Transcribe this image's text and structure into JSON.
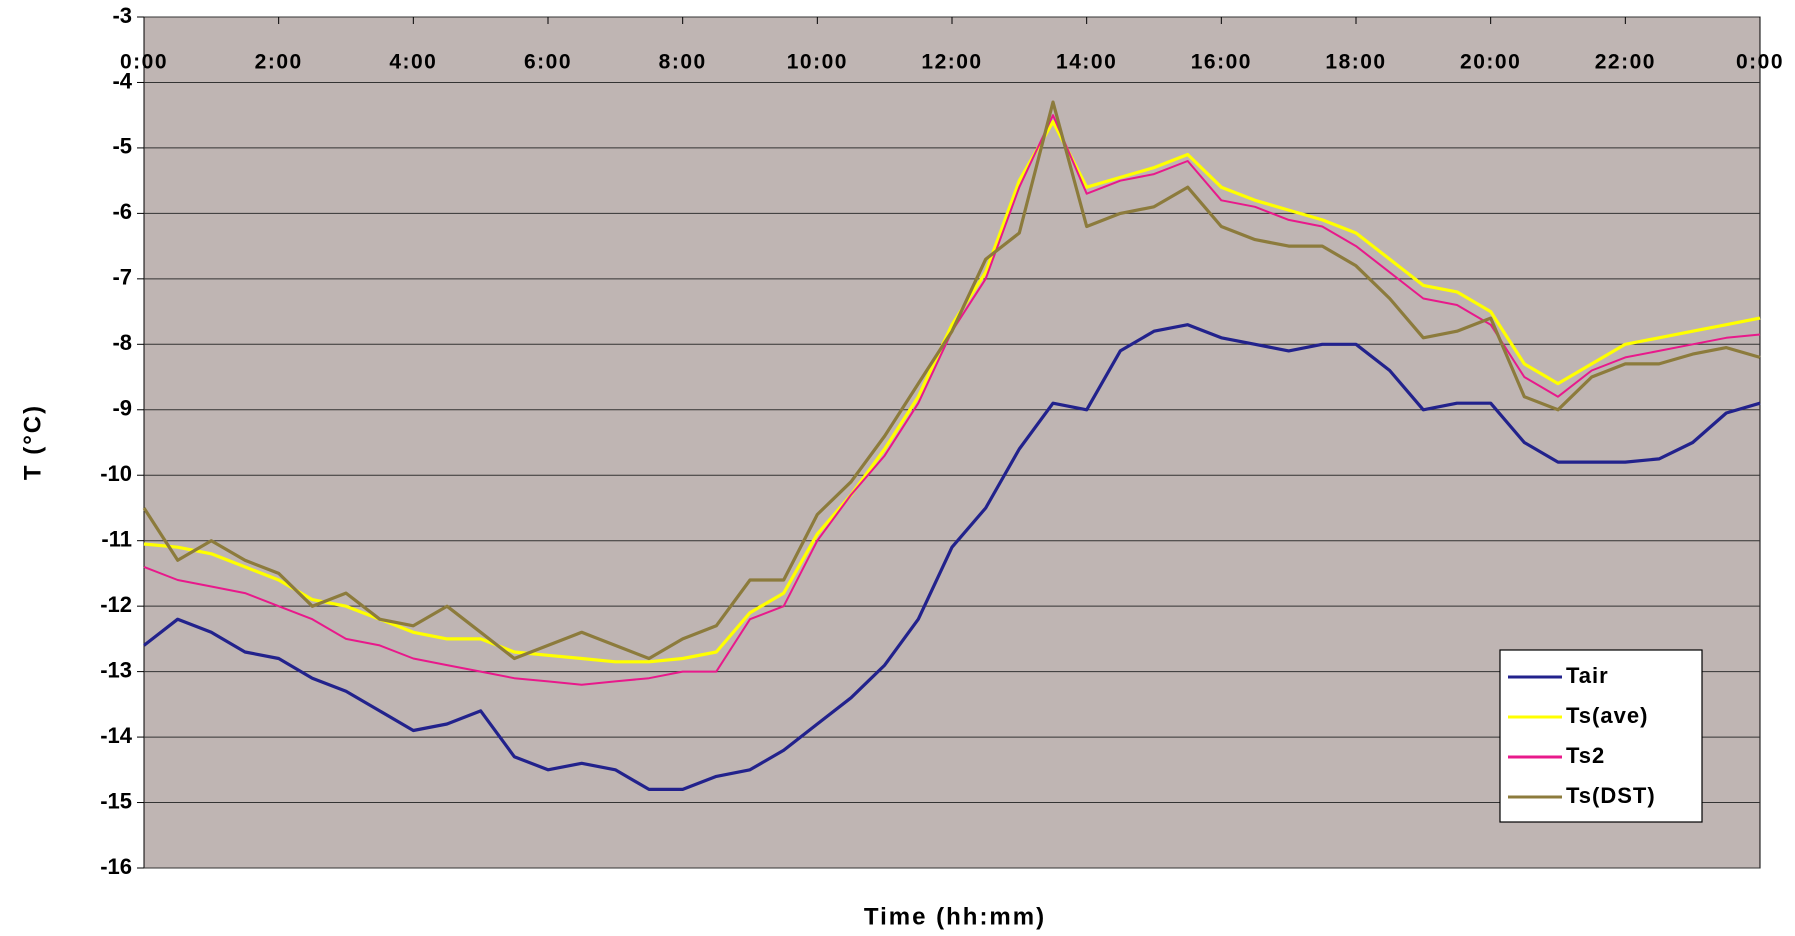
{
  "chart_data": {
    "type": "line",
    "x_label": "Time (hh:mm)",
    "y_label": "T (°C)",
    "xlim": [
      0,
      24
    ],
    "xticks": [
      {
        "value": 0,
        "label": "0:00"
      },
      {
        "value": 2,
        "label": "2:00"
      },
      {
        "value": 4,
        "label": "4:00"
      },
      {
        "value": 6,
        "label": "6:00"
      },
      {
        "value": 8,
        "label": "8:00"
      },
      {
        "value": 10,
        "label": "10:00"
      },
      {
        "value": 12,
        "label": "12:00"
      },
      {
        "value": 14,
        "label": "14:00"
      },
      {
        "value": 16,
        "label": "16:00"
      },
      {
        "value": 18,
        "label": "18:00"
      },
      {
        "value": 20,
        "label": "20:00"
      },
      {
        "value": 22,
        "label": "22:00"
      },
      {
        "value": 24,
        "label": "0:00"
      }
    ],
    "ylim": [
      -16,
      -3
    ],
    "yticks": [
      -16,
      -15,
      -14,
      -13,
      -12,
      -11,
      -10,
      -9,
      -8,
      -7,
      -6,
      -5,
      -4,
      -3
    ],
    "grid": true,
    "legend": "bottom right",
    "background": "#bfb5b3",
    "x": [
      0,
      0.5,
      1,
      1.5,
      2,
      2.5,
      3,
      3.5,
      4,
      4.5,
      5,
      5.5,
      6,
      6.5,
      7,
      7.5,
      8,
      8.5,
      9,
      9.5,
      10,
      10.5,
      11,
      11.5,
      12,
      12.5,
      13,
      13.5,
      14,
      14.5,
      15,
      15.5,
      16,
      16.5,
      17,
      17.5,
      18,
      18.5,
      19,
      19.5,
      20,
      20.5,
      21,
      21.5,
      22,
      22.5,
      23,
      23.5,
      24
    ],
    "series": [
      {
        "name": "Tair",
        "color": "#22228c",
        "values": [
          -12.6,
          -12.2,
          -12.4,
          -12.7,
          -12.8,
          -13.1,
          -13.3,
          -13.6,
          -13.9,
          -13.8,
          -13.6,
          -14.3,
          -14.5,
          -14.4,
          -14.5,
          -14.8,
          -14.8,
          -14.6,
          -14.5,
          -14.2,
          -13.8,
          -13.4,
          -12.9,
          -12.2,
          -11.1,
          -10.5,
          -9.6,
          -8.9,
          -9.0,
          -8.1,
          -7.8,
          -7.7,
          -7.9,
          -8.0,
          -8.1,
          -8.0,
          -8.0,
          -8.4,
          -9.0,
          -8.9,
          -8.9,
          -9.5,
          -9.8,
          -9.8,
          -9.8,
          -9.75,
          -9.5,
          -9.05,
          -8.9
        ]
      },
      {
        "name": "Ts(ave)",
        "color": "#ffff00",
        "values": [
          -11.05,
          -11.1,
          -11.2,
          -11.4,
          -11.6,
          -11.9,
          -12.0,
          -12.2,
          -12.4,
          -12.5,
          -12.5,
          -12.7,
          -12.75,
          -12.8,
          -12.85,
          -12.85,
          -12.8,
          -12.7,
          -12.1,
          -11.8,
          -10.9,
          -10.3,
          -9.6,
          -8.8,
          -7.7,
          -6.9,
          -5.5,
          -4.6,
          -5.6,
          -5.45,
          -5.3,
          -5.1,
          -5.6,
          -5.8,
          -5.95,
          -6.1,
          -6.3,
          -6.7,
          -7.1,
          -7.2,
          -7.5,
          -8.3,
          -8.6,
          -8.3,
          -8.0,
          -7.9,
          -7.8,
          -7.7,
          -7.6
        ]
      },
      {
        "name": "Ts2",
        "color": "#e8198b",
        "values": [
          -11.4,
          -11.6,
          -11.7,
          -11.8,
          -12.0,
          -12.2,
          -12.5,
          -12.6,
          -12.8,
          -12.9,
          -13.0,
          -13.1,
          -13.15,
          -13.2,
          -13.15,
          -13.1,
          -13.0,
          -13.0,
          -12.2,
          -12.0,
          -11.0,
          -10.3,
          -9.7,
          -8.9,
          -7.8,
          -7.0,
          -5.6,
          -4.5,
          -5.7,
          -5.5,
          -5.4,
          -5.2,
          -5.8,
          -5.9,
          -6.1,
          -6.2,
          -6.5,
          -6.9,
          -7.3,
          -7.4,
          -7.7,
          -8.5,
          -8.8,
          -8.4,
          -8.2,
          -8.1,
          -8.0,
          -7.9,
          -7.85
        ]
      },
      {
        "name": "Ts(DST)",
        "color": "#8c7b3c",
        "values": [
          -10.5,
          -11.3,
          -11.0,
          -11.3,
          -11.5,
          -12.0,
          -11.8,
          -12.2,
          -12.3,
          -12.0,
          -12.4,
          -12.8,
          -12.6,
          -12.4,
          -12.6,
          -12.8,
          -12.5,
          -12.3,
          -11.6,
          -11.6,
          -10.6,
          -10.1,
          -9.4,
          -8.6,
          -7.8,
          -6.7,
          -6.3,
          -4.3,
          -6.2,
          -6.0,
          -5.9,
          -5.6,
          -6.2,
          -6.4,
          -6.5,
          -6.5,
          -6.8,
          -7.3,
          -7.9,
          -7.8,
          -7.6,
          -8.8,
          -9.0,
          -8.5,
          -8.3,
          -8.3,
          -8.15,
          -8.05,
          -8.2
        ]
      }
    ]
  }
}
